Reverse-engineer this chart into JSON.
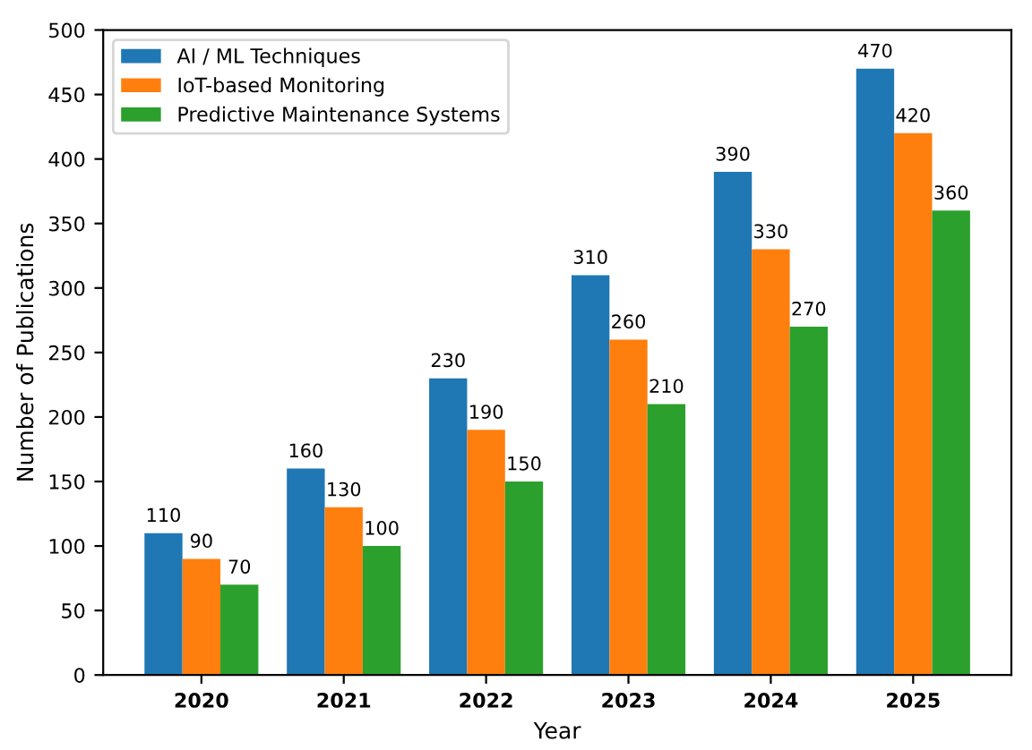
{
  "chart_data": {
    "type": "bar",
    "xlabel": "Year",
    "ylabel": "Number of Publications",
    "categories": [
      "2020",
      "2021",
      "2022",
      "2023",
      "2024",
      "2025"
    ],
    "series": [
      {
        "name": "AI / ML Techniques",
        "color": "#1f77b4",
        "values": [
          110,
          160,
          230,
          310,
          390,
          470
        ]
      },
      {
        "name": "IoT-based Monitoring",
        "color": "#ff7f0e",
        "values": [
          90,
          130,
          190,
          260,
          330,
          420
        ]
      },
      {
        "name": "Predictive Maintenance Systems",
        "color": "#2ca02c",
        "values": [
          70,
          100,
          150,
          210,
          270,
          360
        ]
      }
    ],
    "ylim": [
      0,
      500
    ],
    "yticks": [
      0,
      50,
      100,
      150,
      200,
      250,
      300,
      350,
      400,
      450,
      500
    ],
    "data_labels": true,
    "legend": "top left",
    "grid": false
  }
}
